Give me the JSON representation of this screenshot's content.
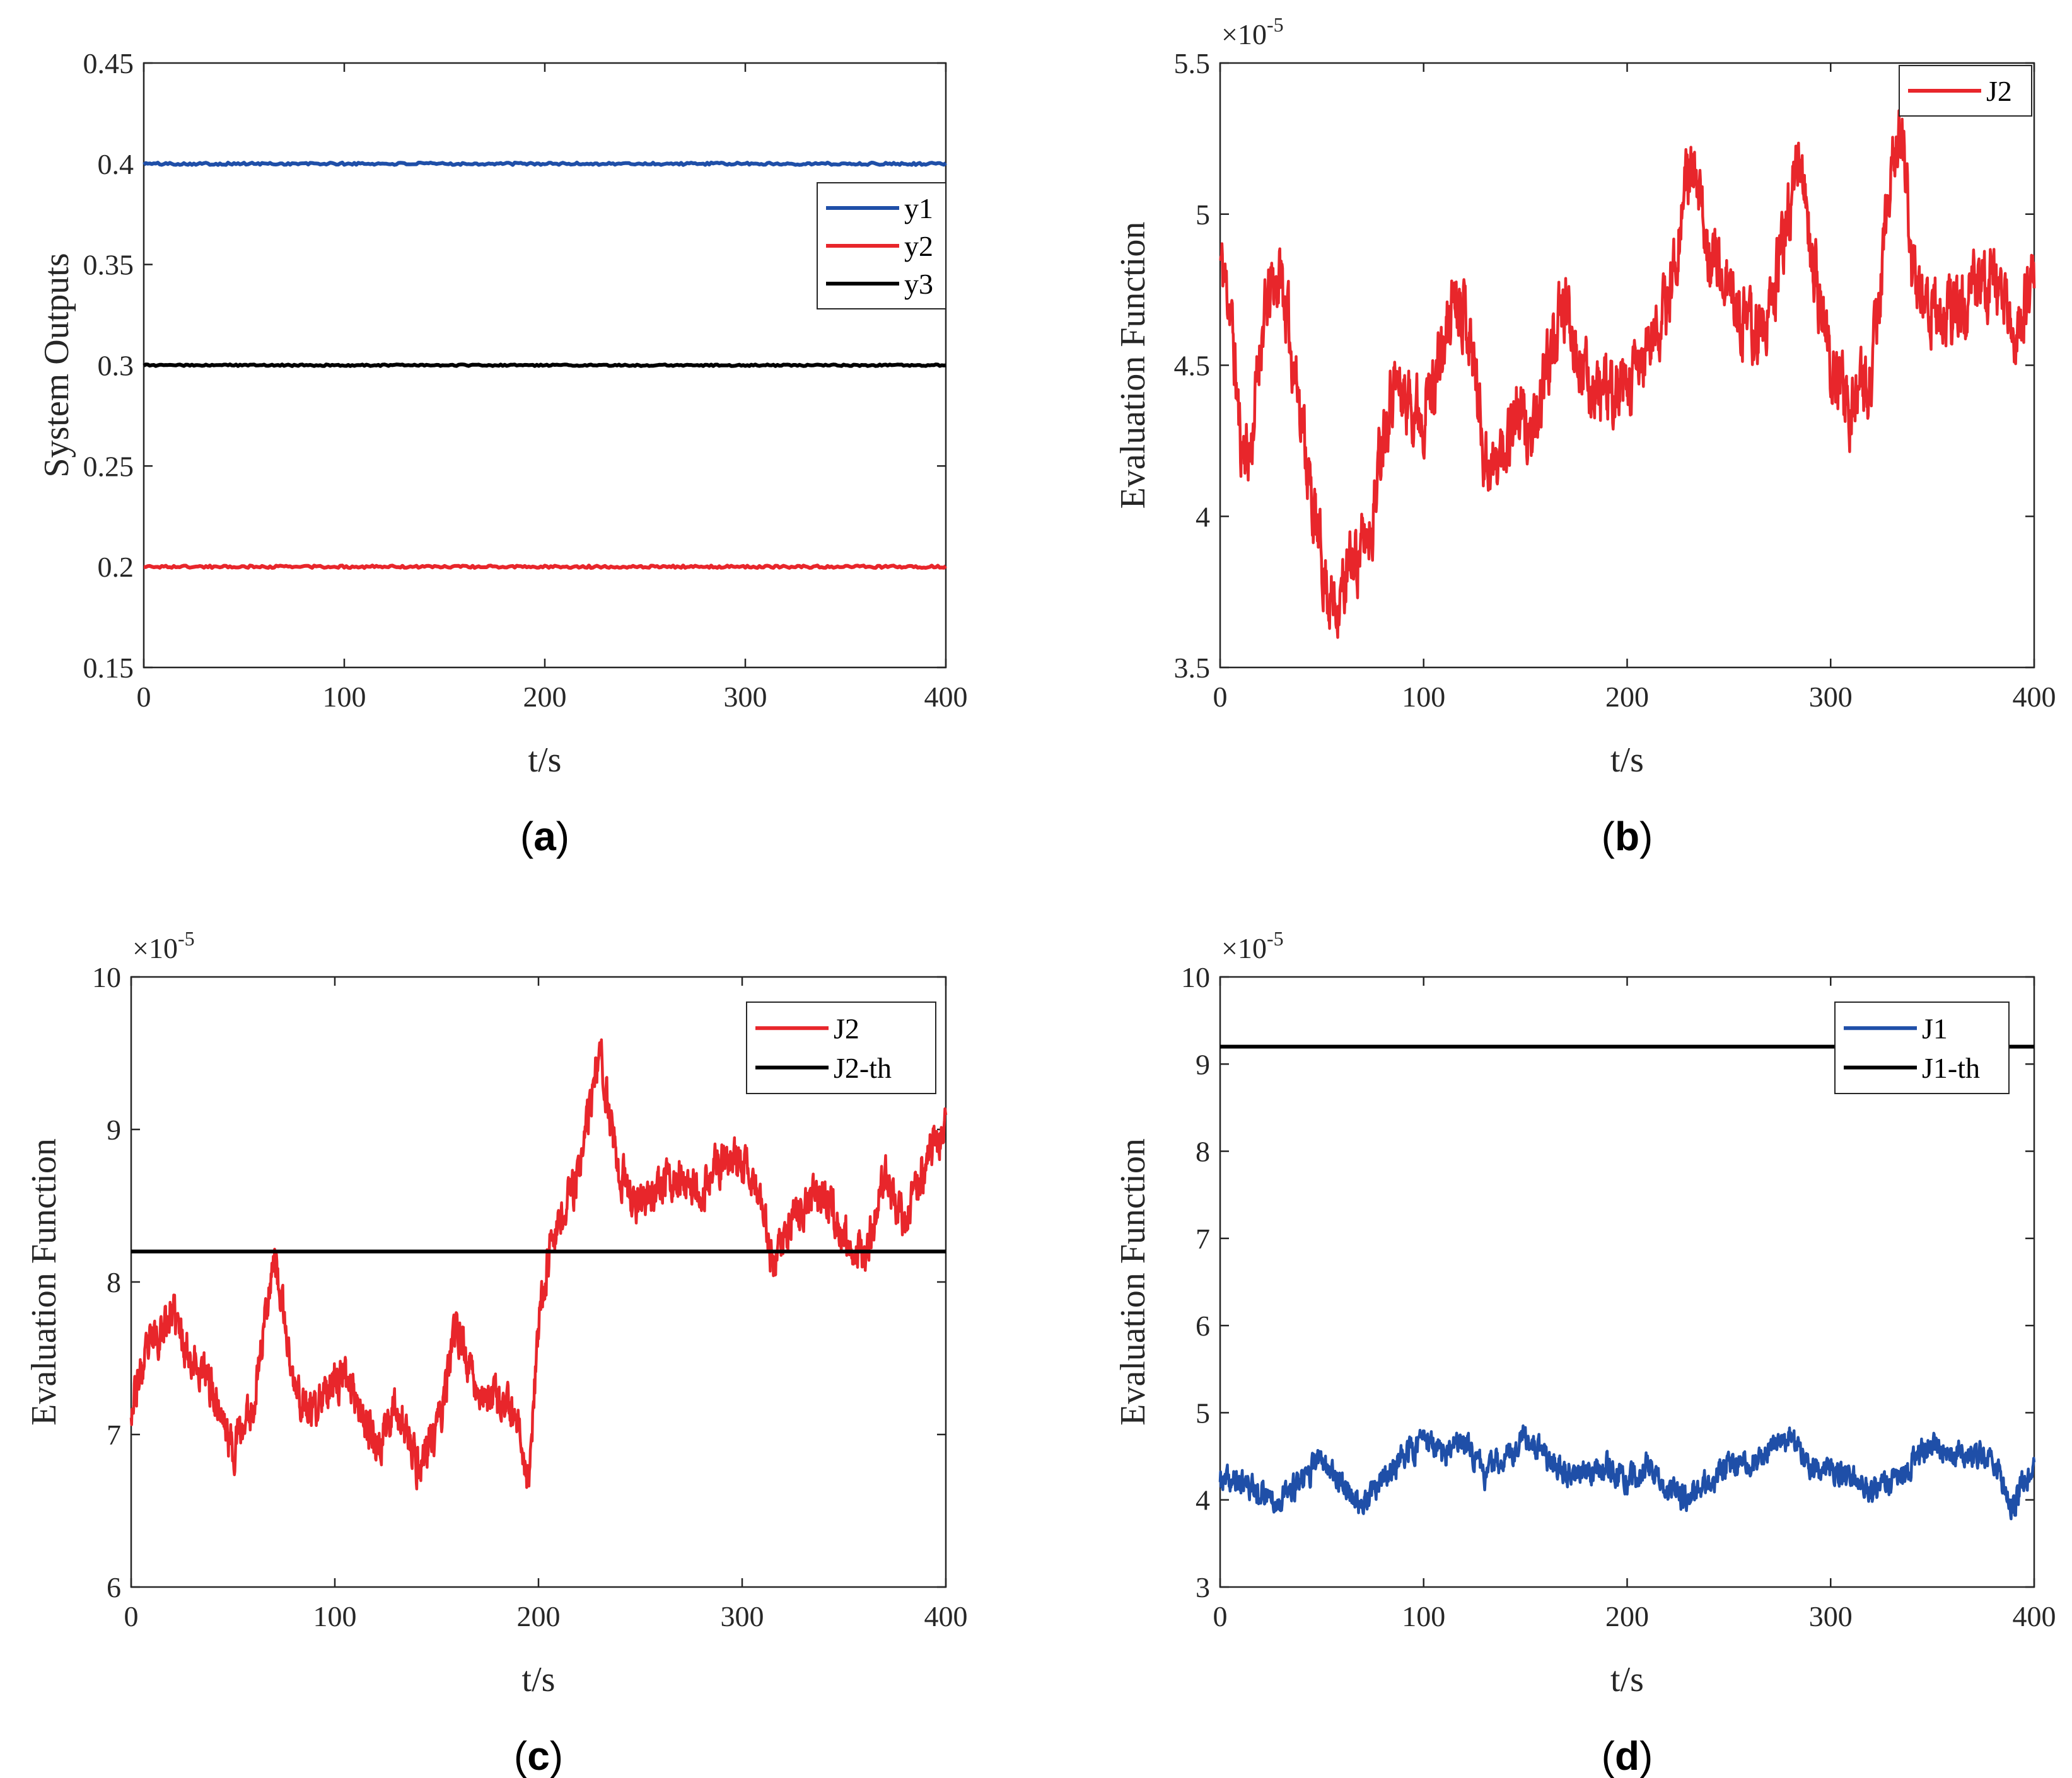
{
  "figure_colors": {
    "blue": "#1f4fa8",
    "red": "#e8262b",
    "black": "#000000",
    "axis": "#262626",
    "grid_tick": "#262626"
  },
  "chart_data": [
    {
      "id": "a",
      "panel_label": "a",
      "type": "line",
      "title": "",
      "xlabel": "t/s",
      "ylabel": "System Outputs",
      "xlim": [
        0,
        400
      ],
      "ylim": [
        0.15,
        0.45
      ],
      "xticks": [
        0,
        100,
        200,
        300,
        400
      ],
      "xtick_labels": [
        "0",
        "100",
        "200",
        "300",
        "400"
      ],
      "yticks": [
        0.15,
        0.2,
        0.25,
        0.3,
        0.35,
        0.4,
        0.45
      ],
      "ytick_labels": [
        "0.15",
        "0.2",
        "0.25",
        "0.3",
        "0.35",
        "0.4",
        "0.45"
      ],
      "exponent": null,
      "legend_position": "upper-right",
      "series": [
        {
          "name": "y1",
          "color": "#1f4fa8",
          "kind": "flat",
          "value": 0.4,
          "noise": 0.0006
        },
        {
          "name": "y2",
          "color": "#e8262b",
          "kind": "flat",
          "value": 0.2,
          "noise": 0.0006
        },
        {
          "name": "y3",
          "color": "#000000",
          "kind": "flat",
          "value": 0.3,
          "noise": 0.0004
        }
      ]
    },
    {
      "id": "b",
      "panel_label": "b",
      "type": "line",
      "title": "",
      "xlabel": "t/s",
      "ylabel": "Evaluation Function",
      "xlim": [
        0,
        400
      ],
      "ylim": [
        3.5,
        5.5
      ],
      "xticks": [
        0,
        100,
        200,
        300,
        400
      ],
      "xtick_labels": [
        "0",
        "100",
        "200",
        "300",
        "400"
      ],
      "yticks": [
        3.5,
        4,
        4.5,
        5,
        5.5
      ],
      "ytick_labels": [
        "3.5",
        "4",
        "4.5",
        "5",
        "5.5"
      ],
      "exponent": {
        "base": "×10",
        "power": "-5"
      },
      "legend_position": "upper-right",
      "series": [
        {
          "name": "J2",
          "color": "#e8262b",
          "kind": "noisy",
          "noise": 0.09,
          "seed": 11,
          "x": [
            0,
            5,
            10,
            15,
            20,
            25,
            30,
            35,
            40,
            45,
            50,
            55,
            60,
            65,
            70,
            75,
            80,
            85,
            90,
            100,
            110,
            115,
            120,
            125,
            130,
            135,
            140,
            145,
            150,
            155,
            160,
            170,
            180,
            190,
            200,
            210,
            220,
            230,
            235,
            240,
            250,
            260,
            270,
            280,
            285,
            290,
            300,
            310,
            320,
            330,
            335,
            340,
            350,
            360,
            370,
            380,
            390,
            400
          ],
          "y": [
            4.85,
            4.7,
            4.25,
            4.2,
            4.6,
            4.75,
            4.8,
            4.55,
            4.35,
            4.05,
            3.85,
            3.7,
            3.75,
            3.85,
            3.9,
            4.0,
            4.3,
            4.45,
            4.4,
            4.35,
            4.55,
            4.75,
            4.7,
            4.5,
            4.2,
            4.15,
            4.25,
            4.35,
            4.3,
            4.25,
            4.5,
            4.7,
            4.45,
            4.4,
            4.4,
            4.55,
            4.7,
            5.15,
            5.05,
            4.9,
            4.75,
            4.6,
            4.65,
            5.05,
            5.2,
            4.9,
            4.5,
            4.35,
            4.45,
            5.15,
            5.3,
            4.8,
            4.7,
            4.65,
            4.75,
            4.8,
            4.6,
            4.8
          ]
        }
      ]
    },
    {
      "id": "c",
      "panel_label": "c",
      "type": "line",
      "title": "",
      "xlabel": "t/s",
      "ylabel": "Evaluation Function",
      "xlim": [
        0,
        400
      ],
      "ylim": [
        6,
        10
      ],
      "xticks": [
        0,
        100,
        200,
        300,
        400
      ],
      "xtick_labels": [
        "0",
        "100",
        "200",
        "300",
        "400"
      ],
      "yticks": [
        6,
        7,
        8,
        9,
        10
      ],
      "ytick_labels": [
        "6",
        "7",
        "8",
        "9",
        "10"
      ],
      "exponent": {
        "base": "×10",
        "power": "-5"
      },
      "legend_position": "upper-right",
      "series": [
        {
          "name": "J2",
          "color": "#e8262b",
          "kind": "noisy",
          "noise": 0.11,
          "seed": 23,
          "x": [
            0,
            10,
            20,
            30,
            40,
            50,
            60,
            70,
            80,
            90,
            100,
            110,
            120,
            130,
            140,
            150,
            160,
            170,
            180,
            190,
            195,
            200,
            205,
            210,
            220,
            230,
            240,
            250,
            260,
            270,
            280,
            290,
            300,
            310,
            315,
            320,
            330,
            340,
            350,
            360,
            370,
            380,
            390,
            400
          ],
          "y": [
            7.2,
            7.6,
            7.8,
            7.5,
            7.3,
            6.9,
            7.2,
            8.2,
            7.3,
            7.1,
            7.4,
            7.3,
            6.9,
            7.2,
            6.8,
            7.0,
            7.7,
            7.3,
            7.2,
            7.1,
            6.7,
            7.7,
            8.2,
            8.4,
            8.7,
            9.5,
            8.7,
            8.5,
            8.6,
            8.7,
            8.6,
            8.8,
            8.8,
            8.6,
            8.1,
            8.3,
            8.5,
            8.6,
            8.3,
            8.2,
            8.7,
            8.4,
            8.8,
            9.0
          ]
        },
        {
          "name": "J2-th",
          "color": "#000000",
          "kind": "flat",
          "value": 8.2,
          "noise": 0
        }
      ]
    },
    {
      "id": "d",
      "panel_label": "d",
      "type": "line",
      "title": "",
      "xlabel": "t/s",
      "ylabel": "Evaluation Function",
      "xlim": [
        0,
        400
      ],
      "ylim": [
        3,
        10
      ],
      "xticks": [
        0,
        100,
        200,
        300,
        400
      ],
      "xtick_labels": [
        "0",
        "100",
        "200",
        "300",
        "400"
      ],
      "yticks": [
        3,
        4,
        5,
        6,
        7,
        8,
        9,
        10
      ],
      "ytick_labels": [
        "3",
        "4",
        "5",
        "6",
        "7",
        "8",
        "9",
        "10"
      ],
      "exponent": {
        "base": "×10",
        "power": "-5"
      },
      "legend_position": "upper-right",
      "series": [
        {
          "name": "J1",
          "color": "#1f4fa8",
          "kind": "noisy",
          "noise": 0.12,
          "seed": 37,
          "x": [
            0,
            10,
            20,
            30,
            40,
            50,
            60,
            70,
            80,
            90,
            100,
            110,
            120,
            130,
            140,
            150,
            160,
            170,
            180,
            190,
            200,
            210,
            220,
            230,
            240,
            250,
            260,
            270,
            280,
            290,
            300,
            310,
            320,
            330,
            340,
            350,
            360,
            370,
            380,
            390,
            400
          ],
          "y": [
            4.2,
            4.2,
            4.1,
            4.0,
            4.2,
            4.5,
            4.2,
            3.9,
            4.2,
            4.5,
            4.7,
            4.5,
            4.7,
            4.3,
            4.5,
            4.7,
            4.5,
            4.3,
            4.3,
            4.4,
            4.2,
            4.4,
            4.1,
            4.0,
            4.2,
            4.4,
            4.4,
            4.6,
            4.7,
            4.4,
            4.3,
            4.3,
            4.1,
            4.2,
            4.4,
            4.7,
            4.5,
            4.5,
            4.5,
            3.9,
            4.5
          ]
        },
        {
          "name": "J1-th",
          "color": "#000000",
          "kind": "flat",
          "value": 9.2,
          "noise": 0
        }
      ]
    }
  ]
}
